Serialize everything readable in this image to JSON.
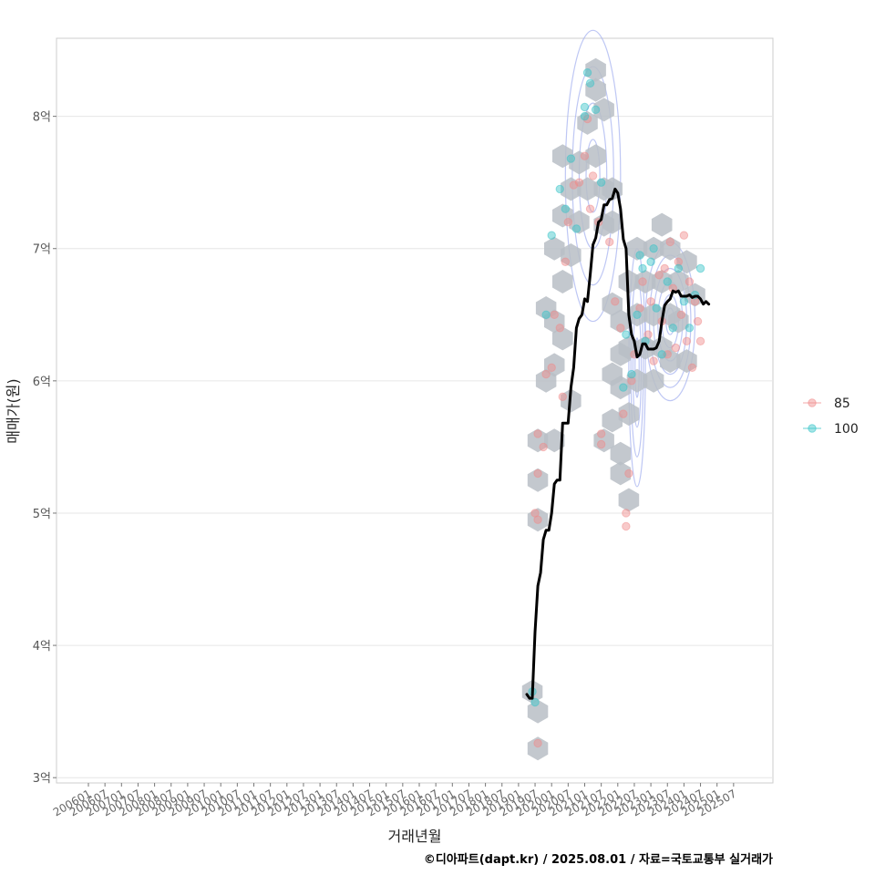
{
  "chart_data": {
    "type": "scatter",
    "xlabel": "거래년월",
    "ylabel": "매매가(원)",
    "caption": "©디아파트(dapt.kr) / 2025.08.01 / 자료=국토교통부 실거래가",
    "x_ticks": [
      "200601",
      "200607",
      "200701",
      "200707",
      "200801",
      "200807",
      "200901",
      "200907",
      "201001",
      "201007",
      "201101",
      "201107",
      "201201",
      "201207",
      "201301",
      "201307",
      "201401",
      "201407",
      "201501",
      "201507",
      "201601",
      "201607",
      "201701",
      "201707",
      "201801",
      "201807",
      "201901",
      "201907",
      "202001",
      "202007",
      "202101",
      "202107",
      "202201",
      "202207",
      "202301",
      "202307",
      "202401",
      "202407",
      "202501",
      "202507"
    ],
    "y_ticks": [
      {
        "value": 3,
        "label": "3억"
      },
      {
        "value": 4,
        "label": "4억"
      },
      {
        "value": 5,
        "label": "5억"
      },
      {
        "value": 6,
        "label": "6억"
      },
      {
        "value": 7,
        "label": "7억"
      },
      {
        "value": 8,
        "label": "8억"
      }
    ],
    "ylim": [
      2.96,
      8.59
    ],
    "grid": "horizontal",
    "legend": {
      "placement": "right",
      "entries": [
        {
          "label": "85",
          "color": "#f08a8a"
        },
        {
          "label": "100",
          "color": "#35c4c8"
        }
      ]
    },
    "colors": {
      "trend": "#000000",
      "hex": "#b9bec5",
      "contour": "#a8b4f0"
    },
    "trend_line": [
      [
        "2019-04",
        3.63
      ],
      [
        "2019-05",
        3.6
      ],
      [
        "2019-06",
        3.6
      ],
      [
        "2019-07",
        4.1
      ],
      [
        "2019-08",
        4.45
      ],
      [
        "2019-09",
        4.55
      ],
      [
        "2019-10",
        4.8
      ],
      [
        "2019-11",
        4.87
      ],
      [
        "2019-12",
        4.87
      ],
      [
        "2020-01",
        5.0
      ],
      [
        "2020-02",
        5.22
      ],
      [
        "2020-03",
        5.25
      ],
      [
        "2020-04",
        5.25
      ],
      [
        "2020-05",
        5.68
      ],
      [
        "2020-06",
        5.68
      ],
      [
        "2020-07",
        5.68
      ],
      [
        "2020-08",
        5.95
      ],
      [
        "2020-09",
        6.1
      ],
      [
        "2020-10",
        6.4
      ],
      [
        "2020-11",
        6.47
      ],
      [
        "2020-12",
        6.5
      ],
      [
        "2021-01",
        6.62
      ],
      [
        "2021-02",
        6.6
      ],
      [
        "2021-03",
        6.8
      ],
      [
        "2021-04",
        7.03
      ],
      [
        "2021-05",
        7.08
      ],
      [
        "2021-06",
        7.2
      ],
      [
        "2021-07",
        7.22
      ],
      [
        "2021-08",
        7.33
      ],
      [
        "2021-09",
        7.33
      ],
      [
        "2021-10",
        7.37
      ],
      [
        "2021-11",
        7.38
      ],
      [
        "2021-12",
        7.45
      ],
      [
        "2022-01",
        7.42
      ],
      [
        "2022-02",
        7.3
      ],
      [
        "2022-03",
        7.07
      ],
      [
        "2022-04",
        7.0
      ],
      [
        "2022-05",
        6.5
      ],
      [
        "2022-06",
        6.35
      ],
      [
        "2022-07",
        6.3
      ],
      [
        "2022-08",
        6.18
      ],
      [
        "2022-09",
        6.2
      ],
      [
        "2022-10",
        6.28
      ],
      [
        "2022-11",
        6.28
      ],
      [
        "2022-12",
        6.24
      ],
      [
        "2023-01",
        6.24
      ],
      [
        "2023-02",
        6.24
      ],
      [
        "2023-03",
        6.25
      ],
      [
        "2023-04",
        6.3
      ],
      [
        "2023-05",
        6.45
      ],
      [
        "2023-06",
        6.57
      ],
      [
        "2023-07",
        6.6
      ],
      [
        "2023-08",
        6.62
      ],
      [
        "2023-09",
        6.68
      ],
      [
        "2023-10",
        6.67
      ],
      [
        "2023-11",
        6.68
      ],
      [
        "2023-12",
        6.64
      ],
      [
        "2024-01",
        6.64
      ],
      [
        "2024-02",
        6.64
      ],
      [
        "2024-03",
        6.65
      ],
      [
        "2024-04",
        6.63
      ],
      [
        "2024-05",
        6.64
      ],
      [
        "2024-06",
        6.64
      ],
      [
        "2024-07",
        6.62
      ],
      [
        "2024-08",
        6.58
      ],
      [
        "2024-09",
        6.6
      ],
      [
        "2024-10",
        6.58
      ]
    ],
    "hexbins": [
      [
        "2019-06",
        3.65
      ],
      [
        "2019-08",
        3.5
      ],
      [
        "2019-08",
        3.22
      ],
      [
        "2019-08",
        4.95
      ],
      [
        "2019-08",
        5.25
      ],
      [
        "2019-08",
        5.55
      ],
      [
        "2020-02",
        5.55
      ],
      [
        "2019-11",
        6.0
      ],
      [
        "2020-02",
        6.12
      ],
      [
        "2019-11",
        6.55
      ],
      [
        "2020-02",
        6.45
      ],
      [
        "2020-05",
        6.32
      ],
      [
        "2020-08",
        5.85
      ],
      [
        "2020-02",
        7.0
      ],
      [
        "2020-05",
        6.75
      ],
      [
        "2020-05",
        7.25
      ],
      [
        "2020-08",
        6.95
      ],
      [
        "2020-08",
        7.45
      ],
      [
        "2020-05",
        7.7
      ],
      [
        "2020-11",
        7.2
      ],
      [
        "2020-11",
        7.65
      ],
      [
        "2021-02",
        7.45
      ],
      [
        "2021-02",
        7.95
      ],
      [
        "2021-05",
        8.2
      ],
      [
        "2021-05",
        8.35
      ],
      [
        "2021-05",
        7.7
      ],
      [
        "2021-08",
        7.45
      ],
      [
        "2021-08",
        7.18
      ],
      [
        "2021-08",
        8.05
      ],
      [
        "2021-11",
        7.45
      ],
      [
        "2021-11",
        7.2
      ],
      [
        "2021-08",
        5.55
      ],
      [
        "2021-11",
        6.58
      ],
      [
        "2021-11",
        6.05
      ],
      [
        "2021-11",
        5.7
      ],
      [
        "2022-02",
        6.45
      ],
      [
        "2022-02",
        6.2
      ],
      [
        "2022-02",
        5.95
      ],
      [
        "2022-02",
        5.45
      ],
      [
        "2022-02",
        5.3
      ],
      [
        "2022-05",
        6.75
      ],
      [
        "2022-05",
        6.25
      ],
      [
        "2022-05",
        5.75
      ],
      [
        "2022-05",
        5.1
      ],
      [
        "2022-08",
        7.0
      ],
      [
        "2022-08",
        6.5
      ],
      [
        "2022-08",
        6.0
      ],
      [
        "2022-11",
        6.75
      ],
      [
        "2022-11",
        6.25
      ],
      [
        "2023-02",
        7.0
      ],
      [
        "2023-02",
        6.5
      ],
      [
        "2023-02",
        6.0
      ],
      [
        "2023-05",
        7.18
      ],
      [
        "2023-05",
        6.75
      ],
      [
        "2023-05",
        6.25
      ],
      [
        "2023-08",
        7.0
      ],
      [
        "2023-08",
        6.5
      ],
      [
        "2023-08",
        6.15
      ],
      [
        "2023-11",
        6.75
      ],
      [
        "2023-11",
        6.45
      ],
      [
        "2024-02",
        6.9
      ],
      [
        "2024-02",
        6.15
      ],
      [
        "2024-05",
        6.65
      ]
    ],
    "points_85": [
      [
        "2019-08",
        3.26
      ],
      [
        "2019-07",
        5.0
      ],
      [
        "2019-08",
        4.95
      ],
      [
        "2019-08",
        5.3
      ],
      [
        "2019-08",
        5.6
      ],
      [
        "2019-10",
        5.5
      ],
      [
        "2019-11",
        6.05
      ],
      [
        "2020-01",
        6.1
      ],
      [
        "2020-02",
        6.5
      ],
      [
        "2020-05",
        5.88
      ],
      [
        "2020-04",
        6.4
      ],
      [
        "2020-06",
        6.9
      ],
      [
        "2020-07",
        7.2
      ],
      [
        "2020-09",
        7.48
      ],
      [
        "2020-11",
        7.5
      ],
      [
        "2021-01",
        7.7
      ],
      [
        "2021-02",
        7.98
      ],
      [
        "2021-03",
        7.3
      ],
      [
        "2021-04",
        7.55
      ],
      [
        "2021-06",
        7.2
      ],
      [
        "2021-07",
        5.6
      ],
      [
        "2021-07",
        5.52
      ],
      [
        "2021-10",
        7.05
      ],
      [
        "2021-12",
        6.6
      ],
      [
        "2022-02",
        6.4
      ],
      [
        "2022-03",
        5.75
      ],
      [
        "2022-04",
        5.0
      ],
      [
        "2022-04",
        4.9
      ],
      [
        "2022-05",
        5.3
      ],
      [
        "2022-06",
        6.0
      ],
      [
        "2022-07",
        6.2
      ],
      [
        "2022-09",
        6.55
      ],
      [
        "2022-10",
        6.75
      ],
      [
        "2022-12",
        6.35
      ],
      [
        "2023-01",
        6.6
      ],
      [
        "2023-02",
        6.15
      ],
      [
        "2023-04",
        6.8
      ],
      [
        "2023-05",
        6.45
      ],
      [
        "2023-06",
        6.85
      ],
      [
        "2023-07",
        6.2
      ],
      [
        "2023-08",
        7.05
      ],
      [
        "2023-09",
        6.7
      ],
      [
        "2023-10",
        6.25
      ],
      [
        "2023-11",
        6.9
      ],
      [
        "2023-12",
        6.5
      ],
      [
        "2024-01",
        7.1
      ],
      [
        "2024-02",
        6.3
      ],
      [
        "2024-03",
        6.75
      ],
      [
        "2024-04",
        6.1
      ],
      [
        "2024-05",
        6.6
      ],
      [
        "2024-06",
        6.45
      ],
      [
        "2024-07",
        6.3
      ]
    ],
    "points_100": [
      [
        "2019-06",
        3.65
      ],
      [
        "2019-07",
        3.57
      ],
      [
        "2019-11",
        6.5
      ],
      [
        "2020-01",
        7.1
      ],
      [
        "2020-04",
        7.45
      ],
      [
        "2020-06",
        7.3
      ],
      [
        "2020-08",
        7.68
      ],
      [
        "2020-10",
        7.15
      ],
      [
        "2021-02",
        8.33
      ],
      [
        "2021-03",
        8.25
      ],
      [
        "2021-01",
        8.0
      ],
      [
        "2021-01",
        8.07
      ],
      [
        "2021-05",
        8.05
      ],
      [
        "2021-07",
        7.5
      ],
      [
        "2022-04",
        6.35
      ],
      [
        "2022-06",
        6.05
      ],
      [
        "2022-08",
        6.5
      ],
      [
        "2022-09",
        6.95
      ],
      [
        "2022-10",
        6.85
      ],
      [
        "2022-11",
        6.3
      ],
      [
        "2023-01",
        6.9
      ],
      [
        "2023-03",
        6.55
      ],
      [
        "2023-05",
        6.2
      ],
      [
        "2023-07",
        6.75
      ],
      [
        "2023-09",
        6.4
      ],
      [
        "2023-11",
        6.85
      ],
      [
        "2024-01",
        6.6
      ],
      [
        "2024-03",
        6.4
      ],
      [
        "2024-05",
        6.65
      ],
      [
        "2024-07",
        6.85
      ],
      [
        "2022-03",
        5.95
      ],
      [
        "2023-02",
        7.0
      ]
    ],
    "contours": [
      {
        "center": [
          "2021-04",
          7.55
        ],
        "width": 10,
        "height": 1.1,
        "levels": 4
      },
      {
        "center": [
          "2023-08",
          6.45
        ],
        "width": 9,
        "height": 0.6,
        "levels": 6
      },
      {
        "center": [
          "2022-08",
          6.1
        ],
        "width": 3,
        "height": 0.9,
        "levels": 4
      }
    ]
  }
}
